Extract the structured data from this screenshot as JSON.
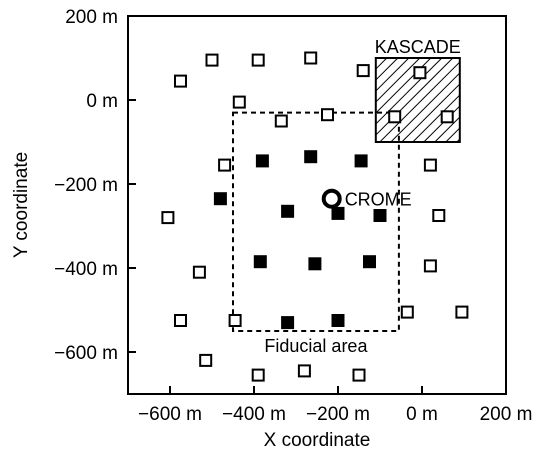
{
  "chart_data": {
    "type": "scatter",
    "title": "",
    "xlabel": "X coordinate",
    "ylabel": "Y coordinate",
    "xlim": [
      -700,
      200
    ],
    "ylim": [
      -700,
      200
    ],
    "x_ticks": [
      {
        "value": -600,
        "label": "−600 m"
      },
      {
        "value": -400,
        "label": "−400 m"
      },
      {
        "value": -200,
        "label": "−200 m"
      },
      {
        "value": 0,
        "label": "0 m"
      },
      {
        "value": 200,
        "label": "200 m"
      }
    ],
    "y_ticks": [
      {
        "value": 200,
        "label": "200 m"
      },
      {
        "value": 0,
        "label": "0 m"
      },
      {
        "value": -200,
        "label": "−200 m"
      },
      {
        "value": -400,
        "label": "−400 m"
      },
      {
        "value": -600,
        "label": "−600 m"
      }
    ],
    "grid": false,
    "series": [
      {
        "marker": "open-square",
        "points": [
          {
            "x": -500,
            "y": 95
          },
          {
            "x": -390,
            "y": 95
          },
          {
            "x": -265,
            "y": 100
          },
          {
            "x": -575,
            "y": 45
          },
          {
            "x": -140,
            "y": 70
          },
          {
            "x": -435,
            "y": -5
          },
          {
            "x": -335,
            "y": -50
          },
          {
            "x": -225,
            "y": -35
          },
          {
            "x": -470,
            "y": -155
          },
          {
            "x": 20,
            "y": -155
          },
          {
            "x": -605,
            "y": -280
          },
          {
            "x": 40,
            "y": -275
          },
          {
            "x": -530,
            "y": -410
          },
          {
            "x": 20,
            "y": -395
          },
          {
            "x": -575,
            "y": -525
          },
          {
            "x": -445,
            "y": -525
          },
          {
            "x": -35,
            "y": -505
          },
          {
            "x": 95,
            "y": -505
          },
          {
            "x": -515,
            "y": -620
          },
          {
            "x": -390,
            "y": -655
          },
          {
            "x": -280,
            "y": -645
          },
          {
            "x": -150,
            "y": -655
          }
        ]
      },
      {
        "marker": "filled-square",
        "points": [
          {
            "x": -380,
            "y": -145
          },
          {
            "x": -265,
            "y": -135
          },
          {
            "x": -145,
            "y": -145
          },
          {
            "x": -480,
            "y": -235
          },
          {
            "x": -320,
            "y": -265
          },
          {
            "x": -200,
            "y": -270
          },
          {
            "x": -100,
            "y": -275
          },
          {
            "x": -385,
            "y": -385
          },
          {
            "x": -255,
            "y": -390
          },
          {
            "x": -125,
            "y": -385
          },
          {
            "x": -320,
            "y": -530
          },
          {
            "x": -200,
            "y": -525
          }
        ]
      }
    ],
    "kascade": {
      "label": "KASCADE",
      "x0": -110,
      "x1": 90,
      "y0": -100,
      "y1": 100,
      "points": [
        {
          "x": -5,
          "y": 65
        },
        {
          "x": -65,
          "y": -40
        },
        {
          "x": 60,
          "y": -40
        }
      ]
    },
    "fiducial": {
      "label": "Fiducial area",
      "x0": -450,
      "x1": -55,
      "y0": -550,
      "y1": -30
    },
    "crome": {
      "label": "CROME",
      "x": -215,
      "y": -235
    }
  }
}
